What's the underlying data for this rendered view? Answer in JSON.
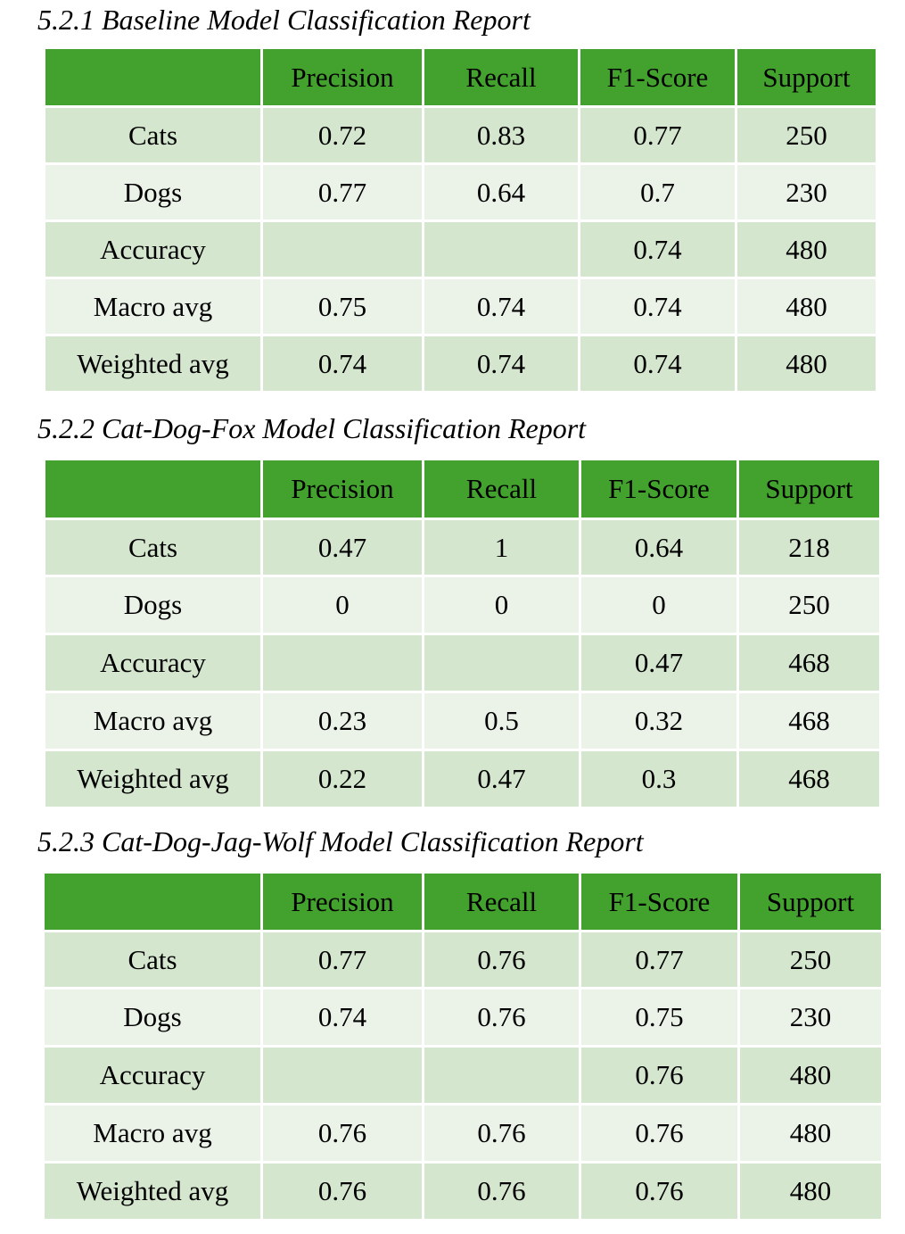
{
  "sections": [
    {
      "title": "5.2.1 Baseline Model Classification Report",
      "headers": [
        "",
        "Precision",
        "Recall",
        "F1-Score",
        "Support"
      ],
      "rows": [
        [
          "Cats",
          "0.72",
          "0.83",
          "0.77",
          "250"
        ],
        [
          "Dogs",
          "0.77",
          "0.64",
          "0.7",
          "230"
        ],
        [
          "Accuracy",
          "",
          "",
          "0.74",
          "480"
        ],
        [
          "Macro avg",
          "0.75",
          "0.74",
          "0.74",
          "480"
        ],
        [
          "Weighted avg",
          "0.74",
          "0.74",
          "0.74",
          "480"
        ]
      ]
    },
    {
      "title": "5.2.2 Cat-Dog-Fox Model Classification Report",
      "headers": [
        "",
        "Precision",
        "Recall",
        "F1-Score",
        "Support"
      ],
      "rows": [
        [
          "Cats",
          "0.47",
          "1",
          "0.64",
          "218"
        ],
        [
          "Dogs",
          "0",
          "0",
          "0",
          "250"
        ],
        [
          "Accuracy",
          "",
          "",
          "0.47",
          "468"
        ],
        [
          "Macro avg",
          "0.23",
          "0.5",
          "0.32",
          "468"
        ],
        [
          "Weighted avg",
          "0.22",
          "0.47",
          "0.3",
          "468"
        ]
      ]
    },
    {
      "title": "5.2.3 Cat-Dog-Jag-Wolf Model Classification Report",
      "headers": [
        "",
        "Precision",
        "Recall",
        "F1-Score",
        "Support"
      ],
      "rows": [
        [
          "Cats",
          "0.77",
          "0.76",
          "0.77",
          "250"
        ],
        [
          "Dogs",
          "0.74",
          "0.76",
          "0.75",
          "230"
        ],
        [
          "Accuracy",
          "",
          "",
          "0.76",
          "480"
        ],
        [
          "Macro avg",
          "0.76",
          "0.76",
          "0.76",
          "480"
        ],
        [
          "Weighted avg",
          "0.76",
          "0.76",
          "0.76",
          "480"
        ]
      ]
    }
  ]
}
